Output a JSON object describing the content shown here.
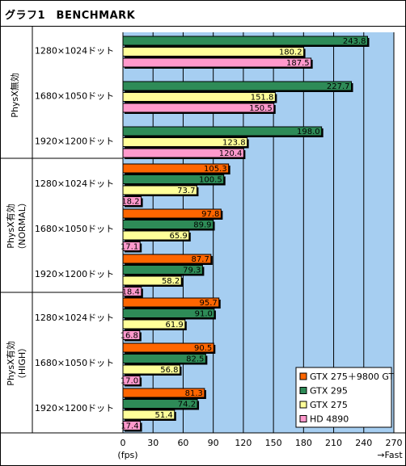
{
  "header": {
    "title": "グラフ1　BENCHMARK"
  },
  "colors": {
    "plot_bg": "#a6cef1",
    "series": [
      "#ff6600",
      "#2e8b57",
      "#ffff99",
      "#ff99cc"
    ]
  },
  "chart_data": {
    "type": "bar",
    "orientation": "horizontal",
    "title": "グラフ1　BENCHMARK",
    "xlim": [
      0,
      270
    ],
    "xticks": [
      0,
      30,
      60,
      90,
      120,
      150,
      180,
      210,
      240,
      270
    ],
    "xunit": "(fps)",
    "xnote": "→Fast",
    "grid": true,
    "legend_position": "bottom-right",
    "series_names": [
      "GTX 275＋9800 GT",
      "GTX 295",
      "GTX 275",
      "HD 4890"
    ],
    "groups": [
      {
        "label": "PhysX無効",
        "rows": [
          {
            "label": "1280×1024ドット",
            "values": [
              null,
              243.8,
              180.2,
              187.5
            ]
          },
          {
            "label": "1680×1050ドット",
            "values": [
              null,
              227.7,
              151.8,
              150.5
            ]
          },
          {
            "label": "1920×1200ドット",
            "values": [
              null,
              198.0,
              123.8,
              120.4
            ]
          }
        ]
      },
      {
        "label": "PhysX有効\n（NORMAL）",
        "rows": [
          {
            "label": "1280×1024ドット",
            "values": [
              105.3,
              100.5,
              73.7,
              18.2
            ]
          },
          {
            "label": "1680×1050ドット",
            "values": [
              97.8,
              89.9,
              65.9,
              17.1
            ]
          },
          {
            "label": "1920×1200ドット",
            "values": [
              87.7,
              79.3,
              58.2,
              18.4
            ]
          }
        ]
      },
      {
        "label": "PhysX有効\n（HIGH）",
        "rows": [
          {
            "label": "1280×1024ドット",
            "values": [
              95.7,
              91.0,
              61.9,
              16.8
            ]
          },
          {
            "label": "1680×1050ドット",
            "values": [
              90.5,
              82.5,
              56.8,
              17.0
            ]
          },
          {
            "label": "1920×1200ドット",
            "values": [
              81.3,
              74.2,
              51.4,
              17.4
            ]
          }
        ]
      }
    ]
  }
}
